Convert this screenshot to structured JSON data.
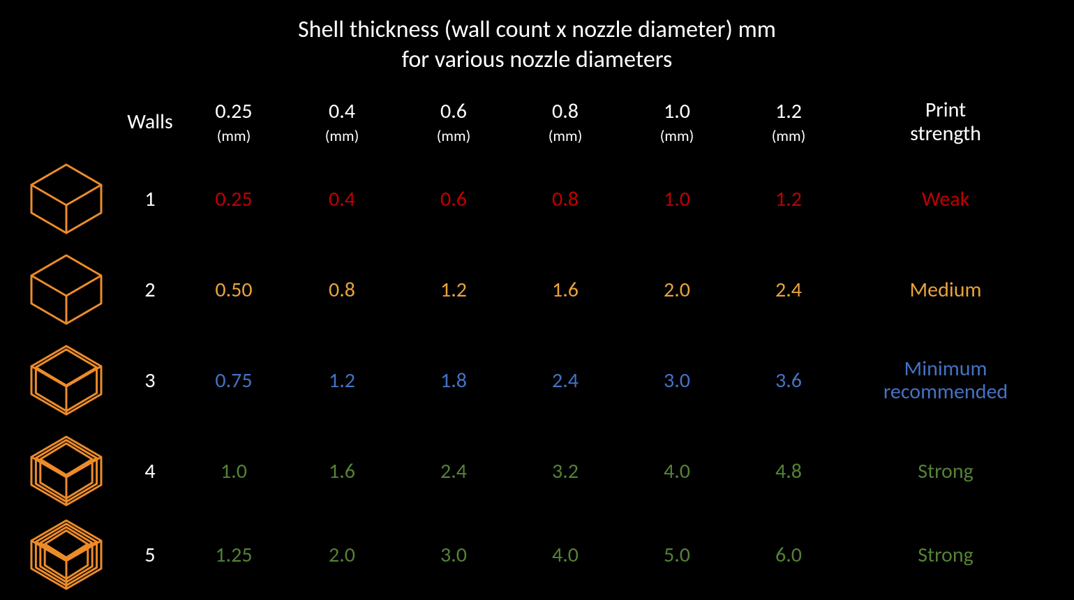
{
  "colors": {
    "background": "#000000",
    "text": "#ffffff",
    "cube_stroke": "#ed8b2a",
    "red": "#c00000",
    "amber": "#e8a33d",
    "blue": "#4472c4",
    "green": "#548235"
  },
  "fonts": {
    "family": "Calibri, Segoe UI, Arial, sans-serif",
    "title_size_pt": 26,
    "header_size_pt": 22,
    "cell_size_pt": 22
  },
  "title": {
    "line1": "Shell thickness (wall count x nozzle diameter) mm",
    "line2": "for various nozzle diameters"
  },
  "headers": {
    "walls": "Walls",
    "strength": "Print\nstrength",
    "nozzle_unit": "(mm)",
    "nozzle_sizes": [
      "0.25",
      "0.4",
      "0.6",
      "0.8",
      "1.0",
      "1.2"
    ]
  },
  "rows": [
    {
      "walls": "1",
      "cube_layers": 1,
      "values": [
        "0.25",
        "0.4",
        "0.6",
        "0.8",
        "1.0",
        "1.2"
      ],
      "strength": "Weak",
      "color_key": "red"
    },
    {
      "walls": "2",
      "cube_layers": 1,
      "values": [
        "0.50",
        "0.8",
        "1.2",
        "1.6",
        "2.0",
        "2.4"
      ],
      "strength": "Medium",
      "color_key": "amber"
    },
    {
      "walls": "3",
      "cube_layers": 2,
      "values": [
        "0.75",
        "1.2",
        "1.8",
        "2.4",
        "3.0",
        "3.6"
      ],
      "strength": "Minimum\nrecommended",
      "color_key": "blue"
    },
    {
      "walls": "4",
      "cube_layers": 3,
      "values": [
        "1.0",
        "1.6",
        "2.4",
        "3.2",
        "4.0",
        "4.8"
      ],
      "strength": "Strong",
      "color_key": "green"
    },
    {
      "walls": "5",
      "cube_layers": 4,
      "values": [
        "1.25",
        "2.0",
        "3.0",
        "4.0",
        "5.0",
        "6.0"
      ],
      "strength": "Strong",
      "color_key": "green"
    }
  ],
  "cube": {
    "stroke_width": 3
  }
}
